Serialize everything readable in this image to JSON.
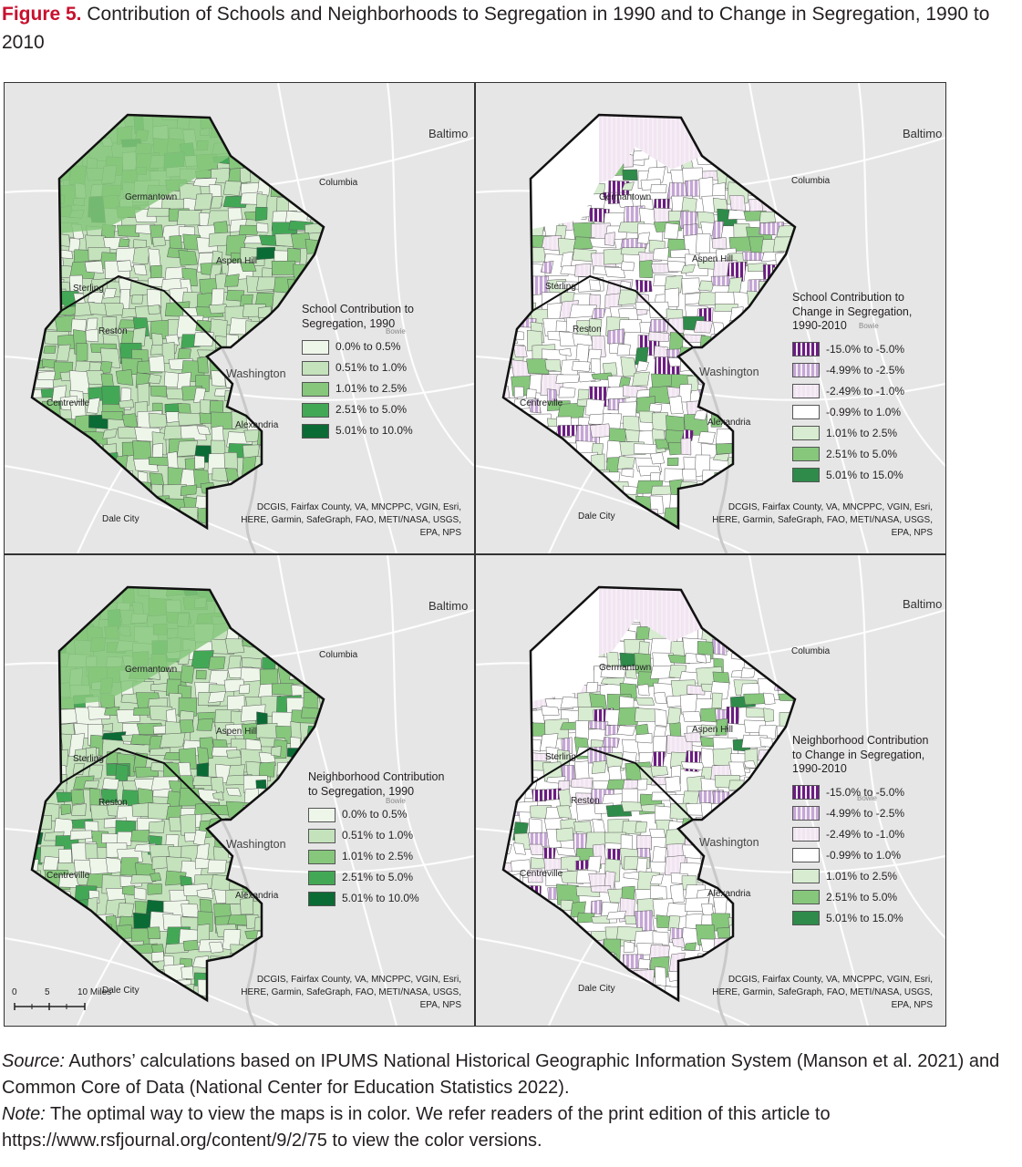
{
  "figure": {
    "label": "Figure 5.",
    "title": "Contribution of Schools and Neighborhoods to Segregation in 1990 and to Change in Segregation, 1990 to 2010"
  },
  "places": {
    "baltimore": "Baltimo",
    "columbia": "Columbia",
    "germantown": "Germantown",
    "aspen_hill": "Aspen Hill",
    "sterling": "Sterling",
    "reston": "Reston",
    "bowie": "Bowie",
    "washington": "Washington",
    "centreville": "Centreville",
    "alexandria": "Alexandria",
    "dale_city": "Dale City"
  },
  "credits": {
    "line1": "DCGIS, Fairfax County, VA, MNCPPC, VGIN, Esri,",
    "line2": "HERE, Garmin, SafeGraph, FAO, METI/NASA, USGS,",
    "line3": "EPA, NPS"
  },
  "scalebar": {
    "zero": "0",
    "five": "5",
    "ten": "10 Miles"
  },
  "colors": {
    "green1": "#eef6ea",
    "green2": "#c4e2bc",
    "green3": "#86c77c",
    "green4": "#43a856",
    "green5": "#0b6b34",
    "white": "#ffffff",
    "purple_light": "#f2e5f2",
    "purple_mid": "#c4a6d6",
    "purple_dark": "#6b1c82",
    "basemap": "#e6e6e6",
    "boundary": "#111111"
  },
  "panels": {
    "school_1990": {
      "legend_title": "School Contribution to Segregation, 1990",
      "items": [
        {
          "label": "0.0% to 0.5%",
          "color": "#eef6ea",
          "hatch": false
        },
        {
          "label": "0.51% to 1.0%",
          "color": "#c4e2bc",
          "hatch": false
        },
        {
          "label": "1.01% to 2.5%",
          "color": "#86c77c",
          "hatch": false
        },
        {
          "label": "2.51% to 5.0%",
          "color": "#43a856",
          "hatch": false
        },
        {
          "label": "5.01% to 10.0%",
          "color": "#0b6b34",
          "hatch": false
        }
      ]
    },
    "school_change": {
      "legend_title": "School Contribution to Change in Segregation, 1990-2010",
      "items": [
        {
          "label": "-15.0% to -5.0%",
          "color": "#6b1c82",
          "hatch": true
        },
        {
          "label": "-4.99% to -2.5%",
          "color": "#c4a6d6",
          "hatch": true
        },
        {
          "label": "-2.49% to -1.0%",
          "color": "#f2e5f2",
          "hatch": true
        },
        {
          "label": "-0.99% to 1.0%",
          "color": "#ffffff",
          "hatch": false
        },
        {
          "label": "1.01% to 2.5%",
          "color": "#d7ecd0",
          "hatch": false
        },
        {
          "label": "2.51% to 5.0%",
          "color": "#86c77c",
          "hatch": false
        },
        {
          "label": "5.01% to 15.0%",
          "color": "#2e8b4a",
          "hatch": false
        }
      ]
    },
    "neighborhood_1990": {
      "legend_title": "Neighborhood Contribution to Segregation, 1990",
      "items": [
        {
          "label": "0.0% to 0.5%",
          "color": "#eef6ea",
          "hatch": false
        },
        {
          "label": "0.51% to 1.0%",
          "color": "#c4e2bc",
          "hatch": false
        },
        {
          "label": "1.01% to 2.5%",
          "color": "#86c77c",
          "hatch": false
        },
        {
          "label": "2.51% to 5.0%",
          "color": "#43a856",
          "hatch": false
        },
        {
          "label": "5.01% to 10.0%",
          "color": "#0b6b34",
          "hatch": false
        }
      ]
    },
    "neighborhood_change": {
      "legend_title": "Neighborhood Contribution to Change in Segregation, 1990-2010",
      "items": [
        {
          "label": "-15.0% to -5.0%",
          "color": "#6b1c82",
          "hatch": true
        },
        {
          "label": "-4.99% to -2.5%",
          "color": "#c4a6d6",
          "hatch": true
        },
        {
          "label": "-2.49% to -1.0%",
          "color": "#f2e5f2",
          "hatch": true
        },
        {
          "label": "-0.99% to 1.0%",
          "color": "#ffffff",
          "hatch": false
        },
        {
          "label": "1.01% to 2.5%",
          "color": "#d7ecd0",
          "hatch": false
        },
        {
          "label": "2.51% to 5.0%",
          "color": "#86c77c",
          "hatch": false
        },
        {
          "label": "5.01% to 15.0%",
          "color": "#2e8b4a",
          "hatch": false
        }
      ]
    }
  },
  "caption": {
    "source_label": "Source:",
    "source_text": " Authors’ calculations based on IPUMS National Historical Geographic Information System (Manson et al. 2021) and Common Core of Data (National Center for Education Statistics 2022).",
    "note_label": "Note:",
    "note_text": " The optimal way to view the maps is in color. We refer readers of the print edition of this article to https://www.rsfjournal.org/content/9/2/75 to view the color versions."
  }
}
